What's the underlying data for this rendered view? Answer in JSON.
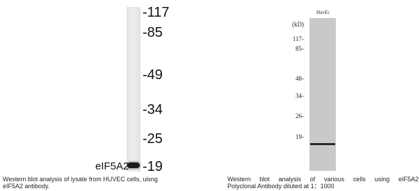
{
  "panels": [
    {
      "markers": [
        "-117",
        "-85",
        "-49",
        "-34",
        "-25",
        "-19"
      ],
      "band_label": "eIF5A2-",
      "caption": [
        "Western blot analysis of lysate from HUVEC cells, uisng",
        "eIF5A2 antibody."
      ]
    },
    {
      "lane_label": "HuvEc",
      "unit": "(kD)",
      "markers": [
        "117-",
        "85-",
        "48-",
        "34-",
        "26-",
        "19-"
      ],
      "caption": [
        "Western blot analysis of various cells using eIF5A2",
        "Polyclonal Antibody diluted at 1：1000"
      ]
    }
  ]
}
